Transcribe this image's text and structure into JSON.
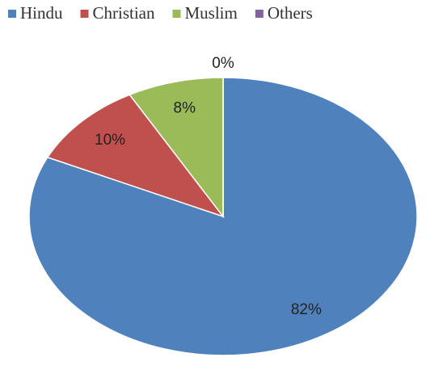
{
  "chart_data": {
    "type": "pie",
    "categories": [
      "Hindu",
      "Christian",
      "Muslim",
      "Others"
    ],
    "values": [
      82,
      10,
      8,
      0
    ],
    "value_labels": [
      "82%",
      "10%",
      "8%",
      "0%"
    ],
    "colors": [
      "#4f81bd",
      "#c0504d",
      "#9bbb59",
      "#8064a2"
    ],
    "legend": "top"
  }
}
